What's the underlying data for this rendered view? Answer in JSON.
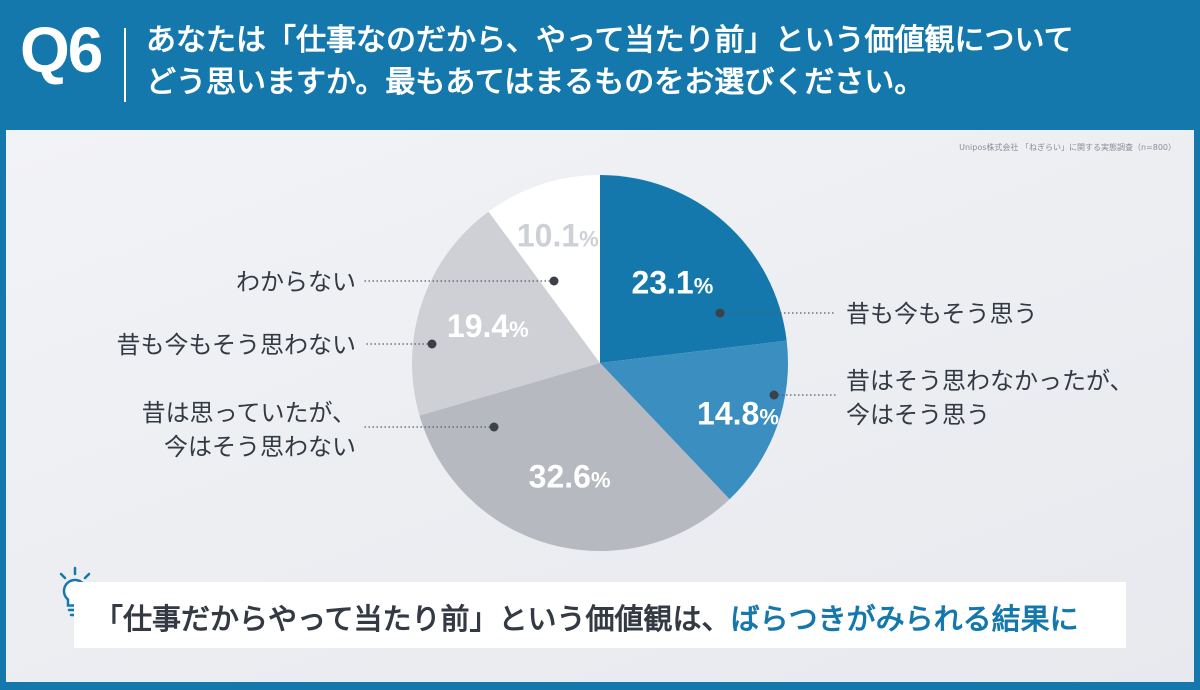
{
  "header": {
    "question_number": "Q6",
    "question_line1": "あなたは「仕事なのだから、やって当たり前」という価値観について",
    "question_line2": "どう思いますか。最もあてはまるものをお選びください。"
  },
  "source": "Unipos株式会社 「ねぎらい」に関する実態調査（n=800）",
  "callout": {
    "prefix": "「仕事だからやって当たり前」という価値観は、",
    "emphasis": "ばらつきがみられる結果に",
    "icon": "lightbulb-icon"
  },
  "colors": {
    "header_bg": "#1478ad",
    "accent": "#1478ad"
  },
  "chart_data": {
    "type": "pie",
    "title": "",
    "slices": [
      {
        "label": "昔も今もそう思う",
        "label_lines": [
          "昔も今もそう思う"
        ],
        "value": 23.1,
        "value_label": "23.1",
        "color": "#1478ad",
        "text_color": "#ffffff",
        "side": "right"
      },
      {
        "label": "昔はそう思わなかったが、今はそう思う",
        "label_lines": [
          "昔はそう思わなかったが、",
          "今はそう思う"
        ],
        "value": 14.8,
        "value_label": "14.8",
        "color": "#3a8fc0",
        "text_color": "#ffffff",
        "side": "right"
      },
      {
        "label": "昔は思っていたが、今はそう思わない",
        "label_lines": [
          "昔は思っていたが、",
          "今はそう思わない"
        ],
        "value": 32.6,
        "value_label": "32.6",
        "color": "#b7b9c1",
        "text_color": "#ffffff",
        "side": "left"
      },
      {
        "label": "昔も今もそう思わない",
        "label_lines": [
          "昔も今もそう思わない"
        ],
        "value": 19.4,
        "value_label": "19.4",
        "color": "#cfd0d6",
        "text_color": "#ffffff",
        "side": "left"
      },
      {
        "label": "わからない",
        "label_lines": [
          "わからない"
        ],
        "value": 10.1,
        "value_label": "10.1",
        "color": "#ffffff",
        "text_color": "#cdd0d7",
        "side": "left"
      }
    ],
    "unit": "%",
    "start_angle_deg": 0,
    "direction": "clockwise"
  }
}
